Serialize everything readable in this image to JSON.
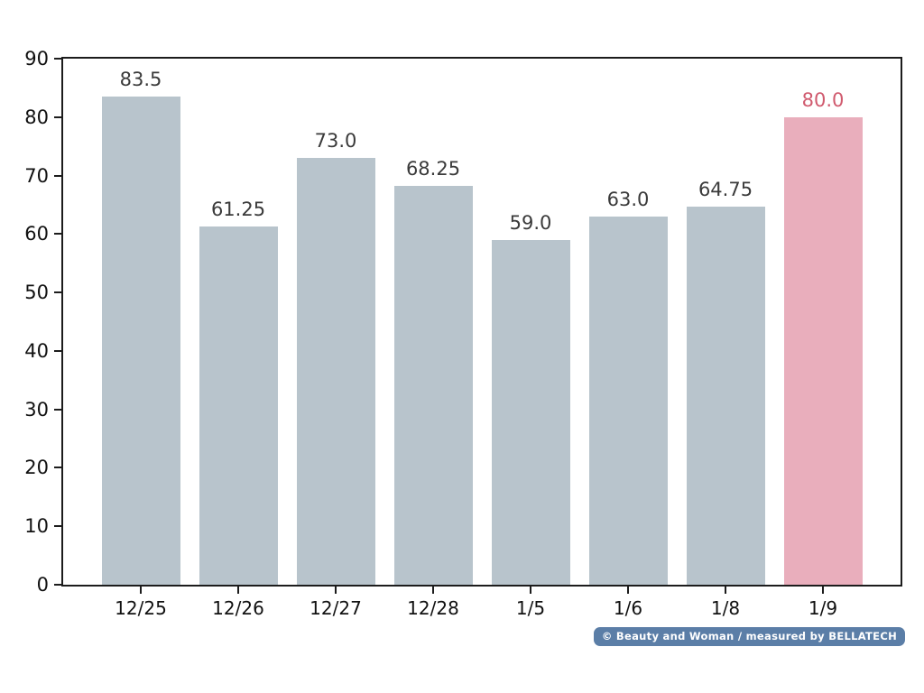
{
  "chart_data": {
    "type": "bar",
    "title": "",
    "xlabel": "",
    "ylabel": "",
    "categories": [
      "12/25",
      "12/26",
      "12/27",
      "12/28",
      "1/5",
      "1/6",
      "1/8",
      "1/9"
    ],
    "values": [
      83.5,
      61.25,
      73.0,
      68.25,
      59.0,
      63.0,
      64.75,
      80.0
    ],
    "value_labels": [
      "83.5",
      "61.25",
      "73.0",
      "68.25",
      "59.0",
      "63.0",
      "64.75",
      "80.0"
    ],
    "ylim": [
      0,
      90
    ],
    "yticks": [
      0,
      10,
      20,
      30,
      40,
      50,
      60,
      70,
      80,
      90
    ],
    "grid": false,
    "legend": "none",
    "bar_color": "#b8c4cc",
    "highlight_index": 7,
    "highlight_color": "#e9aebc",
    "label_color": "#3a3a3a",
    "highlight_label_color": "#d05a6e",
    "axis_color": "#1c1c1c"
  },
  "badge": {
    "text": "© Beauty and Woman / measured by BELLATECH",
    "background": "#5b7ea7",
    "text_color": "#ffffff"
  }
}
